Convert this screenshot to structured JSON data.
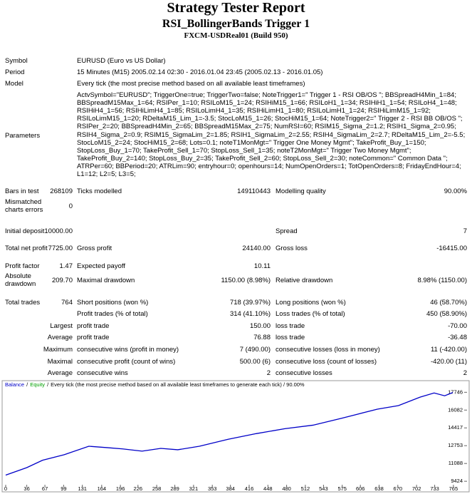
{
  "header": {
    "title": "Strategy Tester Report",
    "subtitle": "RSI_BollingerBands Trigger 1",
    "server": "FXCM-USDReal01 (Build 950)"
  },
  "info": [
    {
      "label": "Symbol",
      "value": "EURUSD (Euro vs US Dollar)"
    },
    {
      "label": "Period",
      "value": "15 Minutes (M15) 2005.02.14 02:30 - 2016.01.04 23:45 (2005.02.13 - 2016.01.05)"
    },
    {
      "label": "Model",
      "value": "Every tick (the most precise method based on all available least timeframes)"
    }
  ],
  "parameters": {
    "label": "Parameters",
    "lines": [
      "ActvSymbol=\"EURUSD\"; TriggerOne=true; TriggerTwo=false; NoteTrigger1=\" Trigger 1 - RSI OB/OS \"; BBSpreadH4Min_1=84;",
      "BBSpreadM15Max_1=64; RSIPer_1=10; RSILoM15_1=24; RSIHiM15_1=66; RSILoH1_1=34; RSIHiH1_1=54; RSILoH4_1=48;",
      "RSIHiH4_1=56; RSIHiLimH4_1=85; RSILoLimH4_1=35; RSIHiLimH1_1=80; RSILoLimH1_1=24; RSIHiLimM15_1=92;",
      "RSILoLimM15_1=20; RDeltaM15_Lim_1=-3.5; StocLoM15_1=26; StocHiM15_1=64; NoteTrigger2=\" Trigger 2 - RSI BB OB/OS \";",
      "RSIPer_2=20; BBSpreadH4Min_2=65; BBSpreadM15Max_2=75; NumRSI=60; RSIM15_Sigma_2=1.2; RSIH1_Sigma_2=0.95;",
      "RSIH4_Sigma_2=0.9; RSIM15_SigmaLim_2=1.85; RSIH1_SigmaLim_2=2.55; RSIH4_SigmaLim_2=2.7; RDeltaM15_Lim_2=-5.5;",
      "StocLoM15_2=24; StocHiM15_2=68; Lots=0.1; noteT1MonMgt=\" Trigger One Money Mgmt\"; TakeProfit_Buy_1=150;",
      "StopLoss_Buy_1=70; TakeProfit_Sell_1=70; StopLoss_Sell_1=35; noteT2MonMgt=\" Trigger Two Money Mgmt\";",
      "TakeProfit_Buy_2=140; StopLoss_Buy_2=35; TakeProfit_Sell_2=60; StopLoss_Sell_2=30; noteCommon=\" Common Data \";",
      "ATRPer=60; BBPeriod=20; ATRLim=90; entryhour=0; openhours=14; NumOpenOrders=1; TotOpenOrders=8; FridayEndHour=4;",
      "L1=12; L2=5; L3=5;"
    ]
  },
  "stats": [
    [
      "Bars in test",
      "268109",
      "Ticks modelled",
      "149110443",
      "Modelling quality",
      "90.00%"
    ],
    [
      "Mismatched charts errors",
      "0"
    ],
    [
      "Initial deposit",
      "10000.00",
      null,
      null,
      "Spread",
      "7"
    ],
    [
      "Total net profit",
      "7725.00",
      "Gross profit",
      "24140.00",
      "Gross loss",
      "-16415.00"
    ],
    [
      "Profit factor",
      "1.47",
      "Expected payoff",
      "10.11"
    ],
    [
      "Absolute drawdown",
      "209.70",
      "Maximal drawdown",
      "1150.00 (8.98%)",
      "Relative drawdown",
      "8.98% (1150.00)"
    ],
    [
      "Total trades",
      "764",
      "Short positions (won %)",
      "718 (39.97%)",
      "Long positions (won %)",
      "46 (58.70%)"
    ],
    [
      null,
      null,
      "Profit trades (% of total)",
      "314 (41.10%)",
      "Loss trades (% of total)",
      "450 (58.90%)"
    ],
    [
      null,
      "Largest",
      "profit trade",
      "150.00",
      "loss trade",
      "-70.00"
    ],
    [
      null,
      "Average",
      "profit trade",
      "76.88",
      "loss trade",
      "-36.48"
    ],
    [
      null,
      "Maximum",
      "consecutive wins (profit in money)",
      "7 (490.00)",
      "consecutive losses (loss in money)",
      "11 (-420.00)"
    ],
    [
      null,
      "Maximal",
      "consecutive profit (count of wins)",
      "500.00 (6)",
      "consecutive loss (count of losses)",
      "-420.00 (11)"
    ],
    [
      null,
      "Average",
      "consecutive wins",
      "2",
      "consecutive losses",
      "2"
    ]
  ],
  "chart_data": {
    "type": "line",
    "series": [
      {
        "name": "Balance",
        "color": "#0000c8",
        "x": [
          0,
          36,
          63,
          100,
          142,
          173,
          200,
          233,
          265,
          294,
          331,
          380,
          428,
          477,
          525,
          574,
          598,
          635,
          671,
          708,
          732,
          750,
          764
        ],
        "values": [
          10000,
          10700,
          11390,
          11910,
          12700,
          12570,
          12450,
          12240,
          12500,
          12370,
          12700,
          13350,
          13880,
          14340,
          14670,
          15320,
          15650,
          16170,
          16500,
          17290,
          17680,
          17420,
          17725
        ]
      },
      {
        "name": "Equity",
        "color": "#00a000"
      }
    ],
    "separator": "/",
    "note": "Every tick (the most precise method based on all available least timeframes to generate each tick) / 90.00%",
    "xlim": [
      0,
      787
    ],
    "xticks": [
      0,
      36,
      67,
      99,
      131,
      164,
      196,
      226,
      258,
      289,
      321,
      353,
      384,
      416,
      448,
      480,
      512,
      543,
      575,
      606,
      638,
      670,
      702,
      733,
      765
    ],
    "ylim": [
      9100,
      18700
    ],
    "yticks": [
      9424,
      11088,
      12753,
      14417,
      16082,
      17746
    ],
    "grid": false
  }
}
